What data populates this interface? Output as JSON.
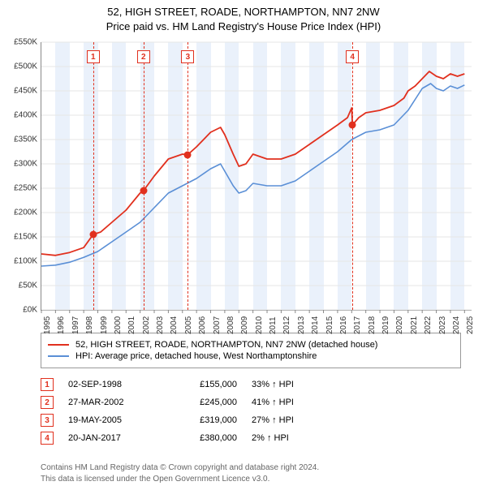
{
  "title_line1": "52, HIGH STREET, ROADE, NORTHAMPTON, NN7 2NW",
  "title_line2": "Price paid vs. HM Land Registry's House Price Index (HPI)",
  "chart": {
    "type": "line",
    "background_color": "#ffffff",
    "grid_color": "#e6e6e6",
    "band_color": "#eaf1fb",
    "x": {
      "min": 1995,
      "max": 2025.5,
      "ticks": [
        1995,
        1996,
        1997,
        1998,
        1999,
        2000,
        2001,
        2002,
        2003,
        2004,
        2005,
        2006,
        2007,
        2008,
        2009,
        2010,
        2011,
        2012,
        2013,
        2014,
        2015,
        2016,
        2017,
        2018,
        2019,
        2020,
        2021,
        2022,
        2023,
        2024,
        2025
      ]
    },
    "y": {
      "min": 0,
      "max": 550,
      "unit_prefix": "£",
      "unit_suffix": "K",
      "tick_step": 50,
      "ticks": [
        0,
        50,
        100,
        150,
        200,
        250,
        300,
        350,
        400,
        450,
        500,
        550
      ]
    },
    "series": [
      {
        "name": "52, HIGH STREET, ROADE, NORTHAMPTON, NN7 2NW (detached house)",
        "color": "#e1301e",
        "width": 1.8,
        "points": [
          [
            1995,
            115
          ],
          [
            1996,
            112
          ],
          [
            1997,
            118
          ],
          [
            1998,
            128
          ],
          [
            1998.67,
            155
          ],
          [
            1999.2,
            160
          ],
          [
            2000,
            180
          ],
          [
            2001,
            205
          ],
          [
            2002,
            240
          ],
          [
            2002.24,
            245
          ],
          [
            2003,
            275
          ],
          [
            2004,
            310
          ],
          [
            2005,
            320
          ],
          [
            2005.38,
            319
          ],
          [
            2006,
            335
          ],
          [
            2007,
            365
          ],
          [
            2007.7,
            375
          ],
          [
            2008,
            360
          ],
          [
            2008.6,
            320
          ],
          [
            2009,
            295
          ],
          [
            2009.5,
            300
          ],
          [
            2010,
            320
          ],
          [
            2010.5,
            315
          ],
          [
            2011,
            310
          ],
          [
            2012,
            310
          ],
          [
            2013,
            320
          ],
          [
            2014,
            340
          ],
          [
            2015,
            360
          ],
          [
            2016,
            380
          ],
          [
            2016.7,
            395
          ],
          [
            2017,
            415
          ],
          [
            2017.05,
            380
          ],
          [
            2017.5,
            395
          ],
          [
            2018,
            405
          ],
          [
            2019,
            410
          ],
          [
            2020,
            420
          ],
          [
            2020.7,
            435
          ],
          [
            2021,
            450
          ],
          [
            2021.5,
            460
          ],
          [
            2022,
            475
          ],
          [
            2022.5,
            490
          ],
          [
            2023,
            480
          ],
          [
            2023.5,
            475
          ],
          [
            2024,
            485
          ],
          [
            2024.5,
            480
          ],
          [
            2025,
            485
          ]
        ]
      },
      {
        "name": "HPI: Average price, detached house, West Northamptonshire",
        "color": "#5a8fd6",
        "width": 1.6,
        "points": [
          [
            1995,
            90
          ],
          [
            1996,
            92
          ],
          [
            1997,
            98
          ],
          [
            1998,
            108
          ],
          [
            1999,
            120
          ],
          [
            2000,
            140
          ],
          [
            2001,
            160
          ],
          [
            2002,
            180
          ],
          [
            2003,
            210
          ],
          [
            2004,
            240
          ],
          [
            2005,
            255
          ],
          [
            2006,
            270
          ],
          [
            2007,
            290
          ],
          [
            2007.7,
            300
          ],
          [
            2008,
            285
          ],
          [
            2008.6,
            255
          ],
          [
            2009,
            240
          ],
          [
            2009.5,
            245
          ],
          [
            2010,
            260
          ],
          [
            2011,
            255
          ],
          [
            2012,
            255
          ],
          [
            2013,
            265
          ],
          [
            2014,
            285
          ],
          [
            2015,
            305
          ],
          [
            2016,
            325
          ],
          [
            2017,
            350
          ],
          [
            2018,
            365
          ],
          [
            2019,
            370
          ],
          [
            2020,
            380
          ],
          [
            2021,
            410
          ],
          [
            2022,
            455
          ],
          [
            2022.6,
            465
          ],
          [
            2023,
            455
          ],
          [
            2023.5,
            450
          ],
          [
            2024,
            460
          ],
          [
            2024.5,
            455
          ],
          [
            2025,
            462
          ]
        ]
      }
    ],
    "sale_markers": [
      {
        "n": 1,
        "x": 1998.67,
        "y": 155,
        "num_y": 520
      },
      {
        "n": 2,
        "x": 2002.24,
        "y": 245,
        "num_y": 520
      },
      {
        "n": 3,
        "x": 2005.38,
        "y": 319,
        "num_y": 520
      },
      {
        "n": 4,
        "x": 2017.05,
        "y": 380,
        "num_y": 520
      }
    ],
    "marker_point_color": "#e1301e"
  },
  "legend": {
    "s1": "52, HIGH STREET, ROADE, NORTHAMPTON, NN7 2NW (detached house)",
    "s2": "HPI: Average price, detached house, West Northamptonshire"
  },
  "sales": [
    {
      "n": "1",
      "date": "02-SEP-1998",
      "price": "£155,000",
      "diff": "33% ↑ HPI"
    },
    {
      "n": "2",
      "date": "27-MAR-2002",
      "price": "£245,000",
      "diff": "41% ↑ HPI"
    },
    {
      "n": "3",
      "date": "19-MAY-2005",
      "price": "£319,000",
      "diff": "27% ↑ HPI"
    },
    {
      "n": "4",
      "date": "20-JAN-2017",
      "price": "£380,000",
      "diff": "2% ↑ HPI"
    }
  ],
  "footer_l1": "Contains HM Land Registry data © Crown copyright and database right 2024.",
  "footer_l2": "This data is licensed under the Open Government Licence v3.0."
}
